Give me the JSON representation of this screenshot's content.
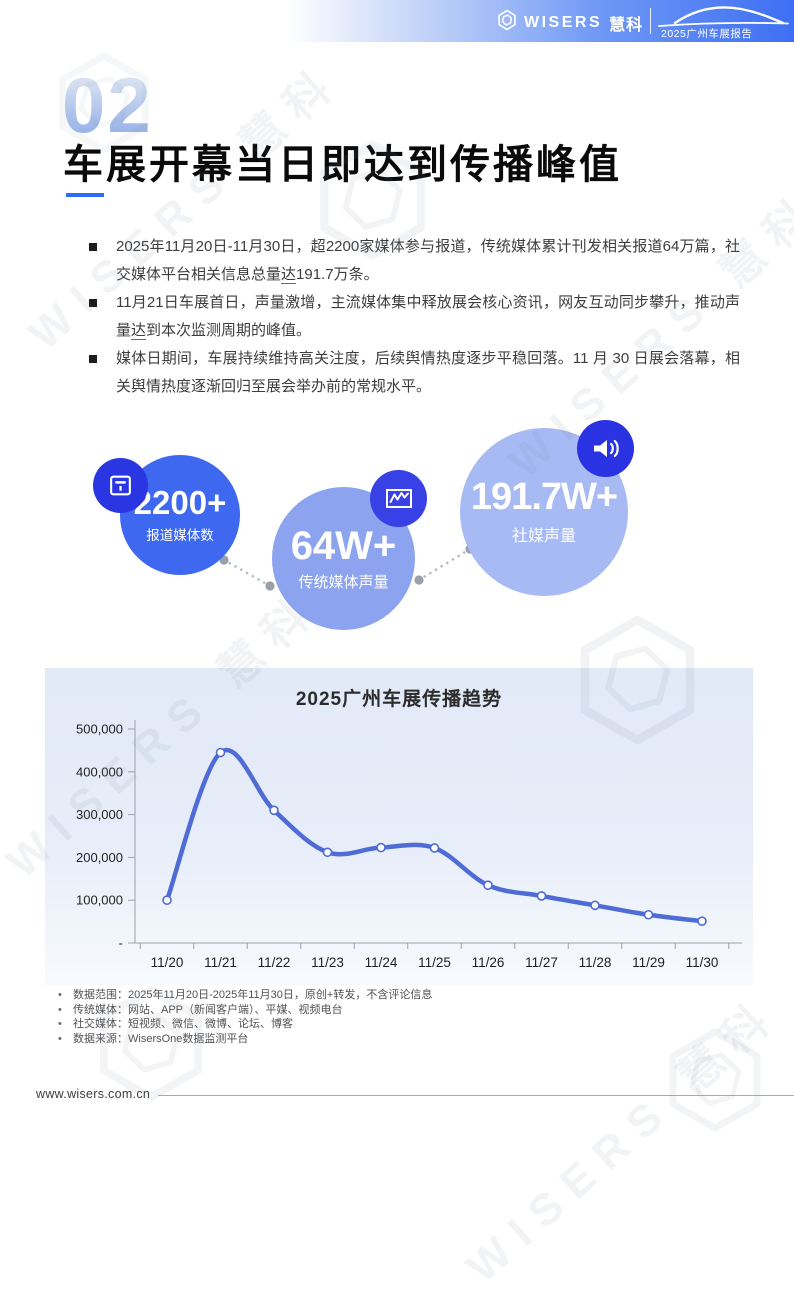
{
  "header": {
    "logo_text": "WISERS",
    "logo_suffix": "慧科",
    "report_tag": "2025广州车展报告"
  },
  "section": {
    "number": "02",
    "title": "车展开幕当日即达到传播峰值"
  },
  "bullets": [
    {
      "pre": "2025年11月20日-11月30日，超2200家媒体参与报道，传统媒体累计刊发相关报道64万篇，社交媒体平台相关信息总量",
      "u": "达",
      "post": "191.7万条。"
    },
    {
      "pre": "11月21日车展首日，声量激增，主流媒体集中释放展会核心资讯，网友互动同步攀升，推动声量",
      "u": "达",
      "post": "到本次监测周期的峰值。"
    },
    {
      "pre": "媒体日期间，车展持续维持高关注度，后续舆情热度逐步平稳回落。11 月 30 日展会落幕，相关舆情热度逐渐回归至展会举办前的常规水平。",
      "u": "",
      "post": ""
    }
  ],
  "stats": [
    {
      "value": "2200+",
      "label": "报道媒体数",
      "icon": "newspaper-icon",
      "circle_color": "#3D68EF",
      "badge_color": "#2936E2"
    },
    {
      "value": "64W+",
      "label": "传统媒体声量",
      "icon": "trend-chart-icon",
      "circle_color": "#8CA4F0",
      "badge_color": "#3741E6"
    },
    {
      "value": "191.7W+",
      "label": "社媒声量",
      "icon": "speaker-icon",
      "circle_color": "#A7BAF4",
      "badge_color": "#2A33E2"
    }
  ],
  "chart_data": {
    "type": "line",
    "title": "2025广州车展传播趋势",
    "categories": [
      "11/20",
      "11/21",
      "11/22",
      "11/23",
      "11/24",
      "11/25",
      "11/26",
      "11/27",
      "11/28",
      "11/29",
      "11/30"
    ],
    "values": [
      100000,
      445000,
      310000,
      212000,
      223000,
      222000,
      135000,
      110000,
      88000,
      66000,
      51000
    ],
    "xlabel": "",
    "ylabel": "",
    "ylim": [
      0,
      500000
    ],
    "y_ticks": [
      "500,000",
      "400,000",
      "300,000",
      "200,000",
      "100,000",
      "-"
    ],
    "grid": false,
    "legend_position": "none",
    "line_color": "#4E6BD6",
    "marker_fill": "#ffffff"
  },
  "footnotes": [
    "数据范围：2025年11月20日-2025年11月30日，原创+转发，不含评论信息",
    "传统媒体：网站、APP（新闻客户端）、平媒、视频电台",
    "社交媒体：短视频、微信、微博、论坛、博客",
    "数据来源：WisersOne数据监测平台"
  ],
  "footer": {
    "url": "www.wisers.com.cn"
  },
  "colors": {
    "accent": "#2E6BF2",
    "header_blue": "#3E6FF2",
    "panel_bg": "#E2E9F7",
    "footer_line": "#93ACE9"
  }
}
